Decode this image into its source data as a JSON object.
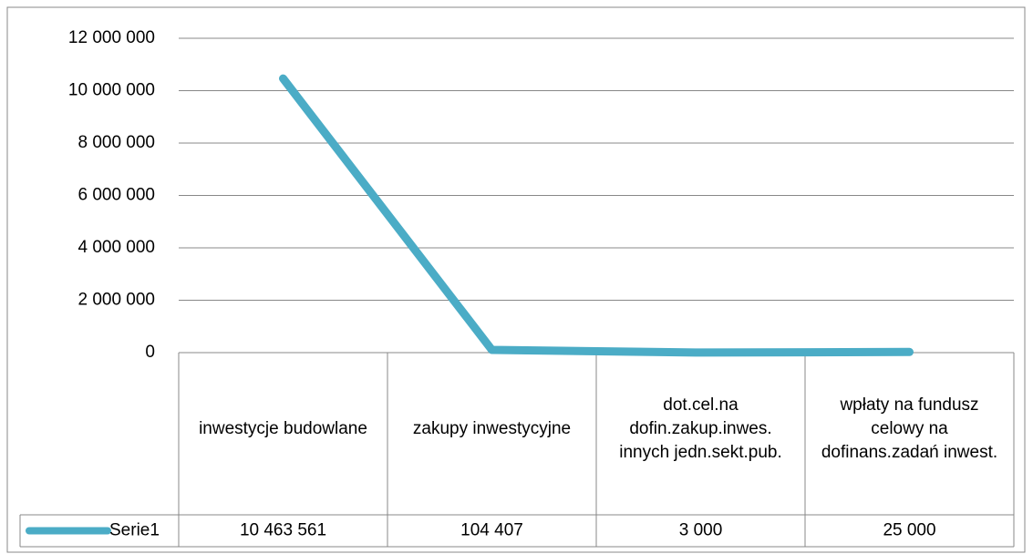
{
  "chart_data": {
    "type": "line",
    "categories": [
      "inwestycje budowlane",
      "zakupy inwestycyjne",
      "dot.cel.na dofin.zakup.inwes. innych jedn.sekt.pub.",
      "wpłaty na fundusz celowy na dofinans.zadań inwest."
    ],
    "series": [
      {
        "name": "Serie1",
        "color": "#4bacc6",
        "values": [
          10463561,
          104407,
          3000,
          25000
        ],
        "value_labels": [
          "10 463 561",
          "104 407",
          "3 000",
          "25 000"
        ]
      }
    ],
    "ylim": [
      0,
      12000000
    ],
    "yticks": [
      0,
      {
        "value": 2000000,
        "label": "2 000 000"
      },
      {
        "value": 4000000,
        "label": "4 000 000"
      },
      {
        "value": 6000000,
        "label": "6 000 000"
      },
      {
        "value": 8000000,
        "label": "8 000 000"
      },
      {
        "value": 10000000,
        "label": "10 000 000"
      },
      {
        "value": 12000000,
        "label": "12 000 000"
      }
    ],
    "grid": true
  }
}
